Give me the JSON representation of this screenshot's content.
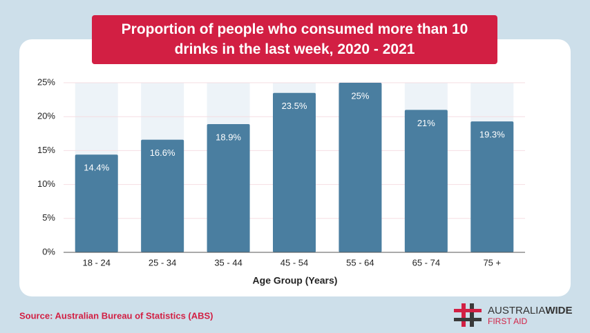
{
  "chart_data": {
    "type": "bar",
    "title": "Proportion of people who consumed more than 10 drinks in the last week, 2020 - 2021",
    "x_label": "Age Group (Years)",
    "categories": [
      "18 - 24",
      "25 - 34",
      "35 - 44",
      "45 - 54",
      "55 - 64",
      "65 - 74",
      "75 +"
    ],
    "values": [
      14.4,
      16.6,
      18.9,
      23.5,
      25,
      21,
      19.3
    ],
    "value_labels": [
      "14.4%",
      "16.6%",
      "18.9%",
      "23.5%",
      "25%",
      "21%",
      "19.3%"
    ],
    "color": "#4a7ea0",
    "ylim": [
      0,
      25
    ],
    "yticks": [
      {
        "value": 0,
        "label": "0%"
      },
      {
        "value": 5,
        "label": "5%"
      },
      {
        "value": 10,
        "label": "10%"
      },
      {
        "value": 15,
        "label": "15%"
      },
      {
        "value": 20,
        "label": "20%"
      },
      {
        "value": 25,
        "label": "25%"
      }
    ],
    "grid": true
  },
  "source": "Source: Australian Bureau of Statistics (ABS)",
  "logo": {
    "name": "AUSTRALIA",
    "name_bold": "WIDE",
    "sub": "FIRST AID"
  }
}
